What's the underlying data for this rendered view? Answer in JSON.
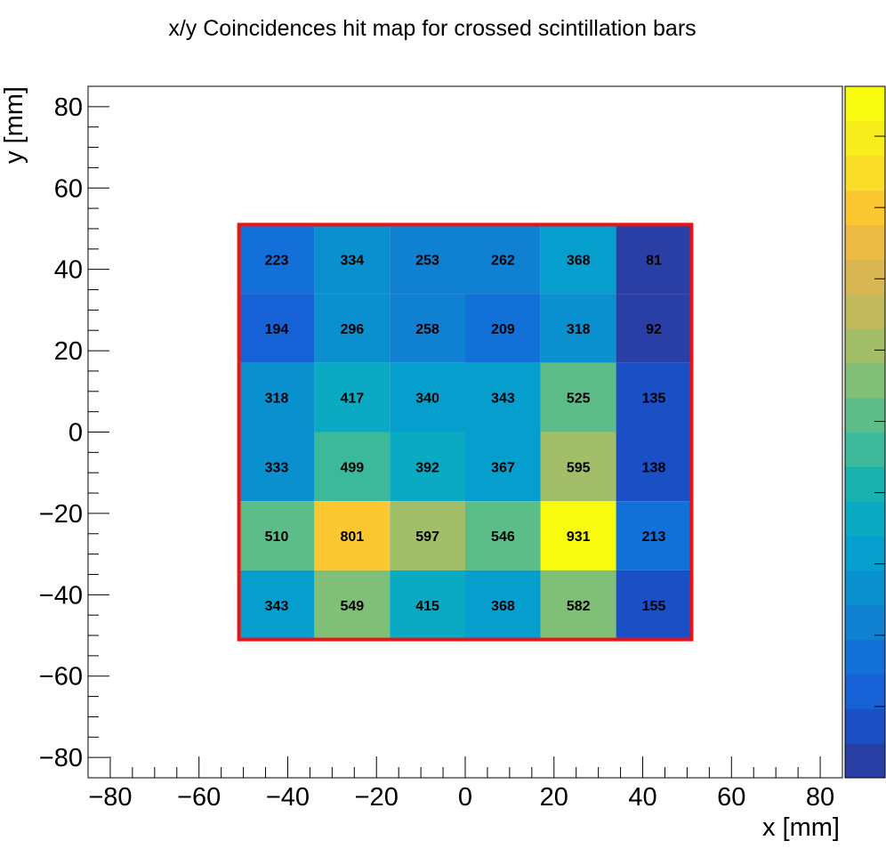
{
  "chart_data": {
    "type": "heatmap",
    "title": "x/y Coincidences hit map for crossed scintillation bars",
    "xlabel": "x [mm]",
    "ylabel": "y [mm]",
    "xlim": [
      -85,
      85
    ],
    "ylim": [
      -85,
      85
    ],
    "x_ticks": [
      -80,
      -60,
      -40,
      -20,
      0,
      20,
      40,
      60,
      80
    ],
    "y_ticks": [
      -80,
      -60,
      -40,
      -20,
      0,
      20,
      40,
      60,
      80
    ],
    "x_tick_labels": [
      "−80",
      "−60",
      "−40",
      "−20",
      "0",
      "20",
      "40",
      "60",
      "80"
    ],
    "y_tick_labels": [
      "−80",
      "−60",
      "−40",
      "−20",
      "0",
      "20",
      "40",
      "60",
      "80"
    ],
    "x_edges": [
      -51,
      -34,
      -17,
      0,
      17,
      34,
      51
    ],
    "y_edges": [
      51,
      34,
      17,
      0,
      -17,
      -34,
      -51
    ],
    "z_values": [
      [
        223,
        334,
        253,
        262,
        368,
        81
      ],
      [
        194,
        296,
        258,
        209,
        318,
        92
      ],
      [
        318,
        417,
        340,
        343,
        525,
        135
      ],
      [
        333,
        499,
        392,
        367,
        595,
        138
      ],
      [
        510,
        801,
        597,
        546,
        931,
        213
      ],
      [
        343,
        549,
        415,
        368,
        582,
        155
      ]
    ],
    "colorbar_range": [
      81,
      931
    ],
    "highlight_box": {
      "x": [
        -51,
        51
      ],
      "y": [
        -51,
        51
      ],
      "color": "#ee1111"
    },
    "colormap": [
      "#2a3fa6",
      "#1a4fc6",
      "#1661d6",
      "#1270d8",
      "#0f80d2",
      "#0a90cf",
      "#069fcd",
      "#0aaac2",
      "#19b2ae",
      "#3bb99a",
      "#5cbd89",
      "#80bf78",
      "#a3be68",
      "#c2b95c",
      "#d8b652",
      "#ecbb44",
      "#fbc832",
      "#fbdc27",
      "#f7ed1d",
      "#f9fb0e"
    ],
    "grid": false,
    "colorbar": "right"
  }
}
